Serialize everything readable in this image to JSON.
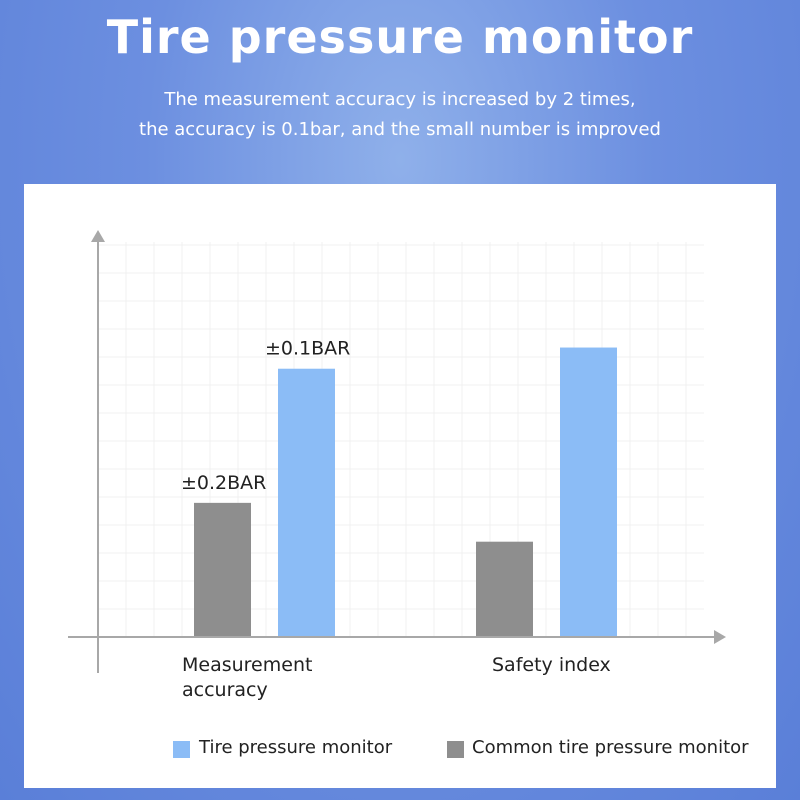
{
  "header": {
    "title": "Tire pressure monitor",
    "subtitle_line1": "The measurement accuracy is increased by 2 times,",
    "subtitle_line2": "the accuracy is 0.1bar, and the small number is improved"
  },
  "colors": {
    "tire_pressure_monitor": "#8bbcf6",
    "common_tire_pressure_monitor": "#8e8e8e",
    "axis": "#a8a8a8"
  },
  "chart_data": {
    "type": "bar",
    "categories": [
      "Measurement\naccuracy",
      "Safety index"
    ],
    "series": [
      {
        "name": "Common tire pressure monitor",
        "values": [
          38,
          27
        ],
        "labels": [
          "±0.2BAR",
          ""
        ]
      },
      {
        "name": "Tire pressure monitor",
        "values": [
          76,
          82
        ],
        "labels": [
          "±0.1BAR",
          ""
        ]
      }
    ],
    "ylim": [
      0,
      100
    ],
    "grid": true,
    "legend_position": "bottom"
  }
}
